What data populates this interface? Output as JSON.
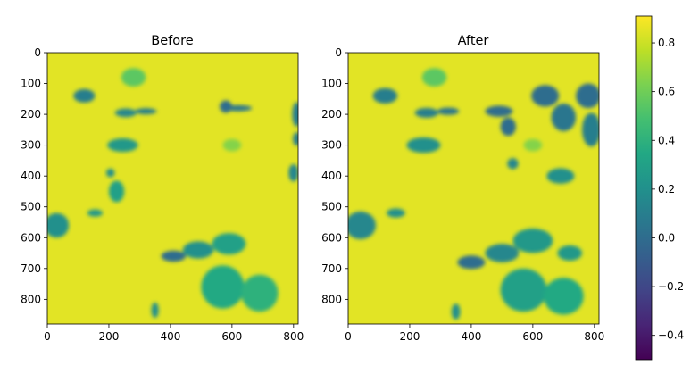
{
  "chart_data": {
    "type": "heatmap",
    "colormap": "viridis",
    "colorbar": {
      "range": [
        -0.5,
        0.91
      ],
      "ticks": [
        -0.4,
        -0.2,
        0.0,
        0.2,
        0.4,
        0.6,
        0.8
      ],
      "tick_labels": [
        "−0.4",
        "−0.2",
        "0.0",
        "0.2",
        "0.4",
        "0.6",
        "0.8"
      ]
    },
    "panels": [
      {
        "title": "Before",
        "xlim": [
          0,
          815
        ],
        "ylim": [
          880,
          0
        ],
        "xticks": [
          0,
          200,
          400,
          600,
          800
        ],
        "yticks": [
          0,
          100,
          200,
          300,
          400,
          500,
          600,
          700,
          800
        ],
        "background_value": 0.85,
        "regions": [
          {
            "x": 120,
            "y": 140,
            "rx": 35,
            "ry": 22,
            "value": 0.1
          },
          {
            "x": 255,
            "y": 195,
            "rx": 35,
            "ry": 14,
            "value": 0.15
          },
          {
            "x": 320,
            "y": 190,
            "rx": 35,
            "ry": 10,
            "value": 0.1
          },
          {
            "x": 620,
            "y": 180,
            "rx": 45,
            "ry": 10,
            "value": 0.05
          },
          {
            "x": 580,
            "y": 175,
            "rx": 20,
            "ry": 20,
            "value": 0.0
          },
          {
            "x": 810,
            "y": 200,
            "rx": 14,
            "ry": 40,
            "value": 0.1
          },
          {
            "x": 810,
            "y": 280,
            "rx": 12,
            "ry": 22,
            "value": 0.1
          },
          {
            "x": 800,
            "y": 390,
            "rx": 16,
            "ry": 28,
            "value": 0.15
          },
          {
            "x": 245,
            "y": 300,
            "rx": 50,
            "ry": 22,
            "value": 0.25
          },
          {
            "x": 205,
            "y": 390,
            "rx": 14,
            "ry": 14,
            "value": 0.2
          },
          {
            "x": 30,
            "y": 560,
            "rx": 40,
            "ry": 40,
            "value": 0.2
          },
          {
            "x": 155,
            "y": 520,
            "rx": 25,
            "ry": 12,
            "value": 0.25
          },
          {
            "x": 225,
            "y": 450,
            "rx": 25,
            "ry": 35,
            "value": 0.3
          },
          {
            "x": 410,
            "y": 660,
            "rx": 40,
            "ry": 18,
            "value": 0.0
          },
          {
            "x": 490,
            "y": 640,
            "rx": 50,
            "ry": 28,
            "value": 0.2
          },
          {
            "x": 590,
            "y": 620,
            "rx": 55,
            "ry": 35,
            "value": 0.3
          },
          {
            "x": 570,
            "y": 760,
            "rx": 70,
            "ry": 70,
            "value": 0.35
          },
          {
            "x": 690,
            "y": 780,
            "rx": 60,
            "ry": 60,
            "value": 0.4
          },
          {
            "x": 350,
            "y": 835,
            "rx": 12,
            "ry": 25,
            "value": 0.2
          },
          {
            "x": 280,
            "y": 80,
            "rx": 40,
            "ry": 30,
            "value": 0.55
          },
          {
            "x": 600,
            "y": 300,
            "rx": 30,
            "ry": 20,
            "value": 0.65
          }
        ]
      },
      {
        "title": "After",
        "xlim": [
          0,
          815
        ],
        "ylim": [
          880,
          0
        ],
        "xticks": [
          0,
          200,
          400,
          600,
          800
        ],
        "yticks": [
          0,
          100,
          200,
          300,
          400,
          500,
          600,
          700,
          800
        ],
        "background_value": 0.85,
        "regions": [
          {
            "x": 120,
            "y": 140,
            "rx": 40,
            "ry": 25,
            "value": 0.1
          },
          {
            "x": 255,
            "y": 195,
            "rx": 38,
            "ry": 16,
            "value": 0.1
          },
          {
            "x": 325,
            "y": 190,
            "rx": 35,
            "ry": 12,
            "value": 0.05
          },
          {
            "x": 490,
            "y": 190,
            "rx": 45,
            "ry": 18,
            "value": 0.0
          },
          {
            "x": 520,
            "y": 240,
            "rx": 25,
            "ry": 30,
            "value": 0.0
          },
          {
            "x": 640,
            "y": 140,
            "rx": 45,
            "ry": 35,
            "value": 0.0
          },
          {
            "x": 700,
            "y": 210,
            "rx": 40,
            "ry": 45,
            "value": 0.05
          },
          {
            "x": 780,
            "y": 140,
            "rx": 40,
            "ry": 40,
            "value": 0.0
          },
          {
            "x": 790,
            "y": 250,
            "rx": 30,
            "ry": 55,
            "value": 0.1
          },
          {
            "x": 245,
            "y": 300,
            "rx": 55,
            "ry": 25,
            "value": 0.2
          },
          {
            "x": 535,
            "y": 360,
            "rx": 18,
            "ry": 18,
            "value": 0.15
          },
          {
            "x": 690,
            "y": 400,
            "rx": 45,
            "ry": 25,
            "value": 0.2
          },
          {
            "x": 40,
            "y": 560,
            "rx": 50,
            "ry": 45,
            "value": 0.15
          },
          {
            "x": 155,
            "y": 520,
            "rx": 30,
            "ry": 15,
            "value": 0.2
          },
          {
            "x": 400,
            "y": 680,
            "rx": 45,
            "ry": 22,
            "value": 0.0
          },
          {
            "x": 500,
            "y": 650,
            "rx": 55,
            "ry": 30,
            "value": 0.15
          },
          {
            "x": 600,
            "y": 610,
            "rx": 65,
            "ry": 40,
            "value": 0.25
          },
          {
            "x": 720,
            "y": 650,
            "rx": 40,
            "ry": 25,
            "value": 0.25
          },
          {
            "x": 570,
            "y": 770,
            "rx": 75,
            "ry": 70,
            "value": 0.3
          },
          {
            "x": 700,
            "y": 790,
            "rx": 65,
            "ry": 60,
            "value": 0.35
          },
          {
            "x": 350,
            "y": 840,
            "rx": 14,
            "ry": 26,
            "value": 0.2
          },
          {
            "x": 280,
            "y": 80,
            "rx": 40,
            "ry": 30,
            "value": 0.55
          },
          {
            "x": 600,
            "y": 300,
            "rx": 30,
            "ry": 20,
            "value": 0.65
          }
        ]
      }
    ]
  }
}
